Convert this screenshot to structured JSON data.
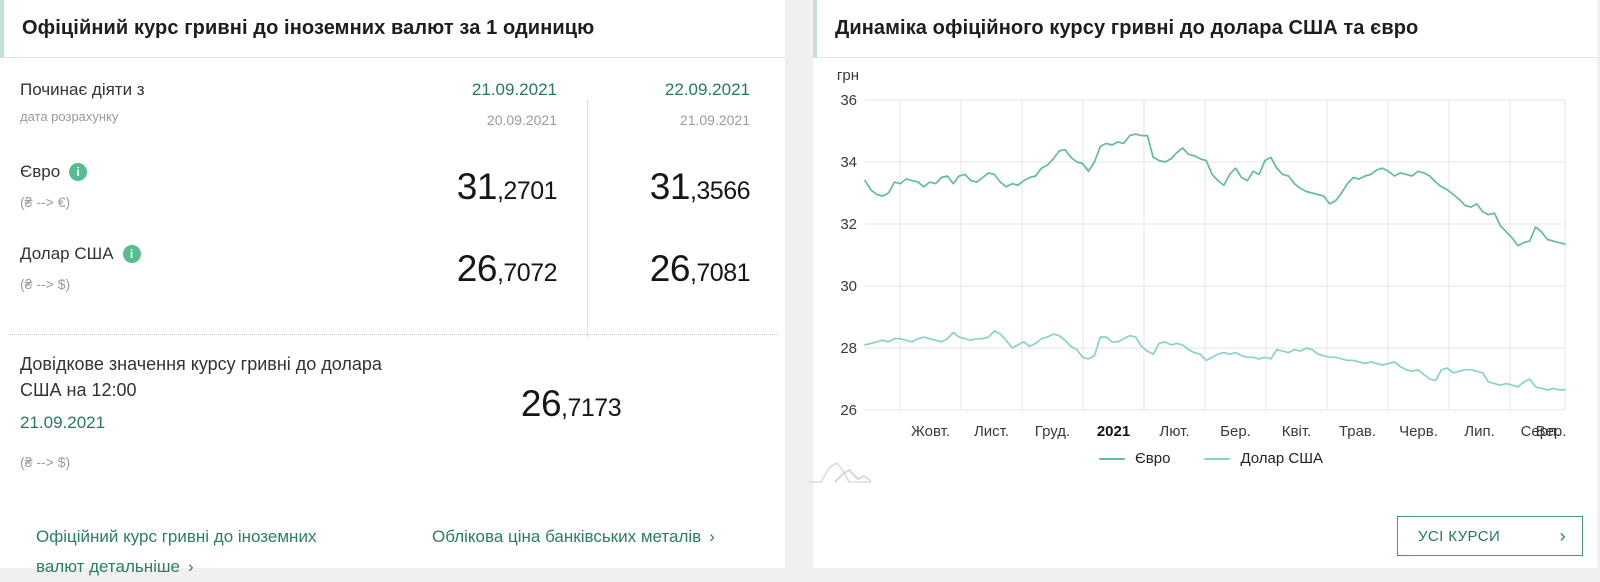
{
  "accent": {
    "green": "#26795d",
    "mint_border": "#c2e3d3"
  },
  "icons": {
    "info": "i",
    "chevron_right": "›"
  },
  "left_panel": {
    "title": "Офіційний курс гривні до іноземних валют за 1 одиницю",
    "effective": {
      "label": "Починає діяти з",
      "sublabel": "дата розрахунку",
      "columns": [
        {
          "date": "21.09.2021",
          "calc_date": "20.09.2021"
        },
        {
          "date": "22.09.2021",
          "calc_date": "21.09.2021"
        }
      ]
    },
    "currencies": [
      {
        "name": "Євро",
        "pair": "(₴ --> €)",
        "values": [
          {
            "int": "31",
            "dec": ",2701"
          },
          {
            "int": "31",
            "dec": ",3566"
          }
        ]
      },
      {
        "name": "Долар США",
        "pair": "(₴ --> $)",
        "values": [
          {
            "int": "26",
            "dec": ",7072"
          },
          {
            "int": "26",
            "dec": ",7081"
          }
        ]
      }
    ],
    "reference": {
      "text_line": "Довідкове значення курсу гривні до долара США на 12:00",
      "date": "21.09.2021",
      "pair": "(₴ --> $)",
      "value": {
        "int": "26",
        "dec": ",7173"
      }
    },
    "links": [
      {
        "label": "Офіційний курс гривні до іноземних валют детальніше"
      },
      {
        "label": "Облікова ціна банківських металів"
      }
    ]
  },
  "right_panel": {
    "title": "Динаміка офіційного курсу гривні до долара США та євро",
    "all_rates_button": "УСІ КУРСИ"
  },
  "chart_data": {
    "type": "line",
    "title": "Динаміка офіційного курсу гривні до долара США та євро",
    "ylabel": "грн",
    "ylim": [
      26,
      36
    ],
    "yticks": [
      36,
      34,
      32,
      30,
      28,
      26
    ],
    "xticklabels": [
      "Жовт.",
      "Лист.",
      "Груд.",
      "2021",
      "Лют.",
      "Бер.",
      "Квіт.",
      "Трав.",
      "Черв.",
      "Лип.",
      "Серп.",
      "Вер."
    ],
    "grid": true,
    "legend_position": "bottom",
    "series": [
      {
        "name": "Євро",
        "color": "#63bd97",
        "values": [
          33.4,
          33.1,
          32.95,
          32.9,
          33.0,
          33.35,
          33.3,
          33.45,
          33.4,
          33.35,
          33.2,
          33.35,
          33.3,
          33.5,
          33.55,
          33.3,
          33.55,
          33.6,
          33.4,
          33.35,
          33.5,
          33.65,
          33.6,
          33.35,
          33.2,
          33.3,
          33.25,
          33.4,
          33.5,
          33.55,
          33.8,
          33.9,
          34.1,
          34.35,
          34.4,
          34.15,
          34.0,
          33.95,
          33.7,
          34.0,
          34.5,
          34.6,
          34.55,
          34.65,
          34.6,
          34.85,
          34.9,
          34.85,
          34.85,
          34.15,
          34.05,
          34.0,
          34.1,
          34.3,
          34.45,
          34.25,
          34.2,
          34.1,
          34.05,
          33.6,
          33.4,
          33.25,
          33.6,
          33.8,
          33.5,
          33.4,
          33.7,
          33.6,
          34.05,
          34.15,
          33.8,
          33.6,
          33.55,
          33.3,
          33.15,
          33.05,
          33.0,
          32.95,
          32.9,
          32.65,
          32.75,
          33.0,
          33.3,
          33.5,
          33.45,
          33.55,
          33.6,
          33.75,
          33.8,
          33.7,
          33.55,
          33.65,
          33.6,
          33.55,
          33.7,
          33.65,
          33.55,
          33.35,
          33.2,
          33.1,
          32.95,
          32.8,
          32.6,
          32.55,
          32.65,
          32.4,
          32.3,
          32.35,
          31.95,
          31.75,
          31.55,
          31.3,
          31.4,
          31.45,
          31.9,
          31.75,
          31.5,
          31.45,
          31.4,
          31.35
        ]
      },
      {
        "name": "Долар США",
        "color": "#87d3c8",
        "values": [
          28.1,
          28.15,
          28.2,
          28.25,
          28.2,
          28.3,
          28.3,
          28.25,
          28.2,
          28.3,
          28.35,
          28.3,
          28.25,
          28.2,
          28.3,
          28.5,
          28.35,
          28.3,
          28.25,
          28.3,
          28.3,
          28.35,
          28.55,
          28.45,
          28.25,
          28.0,
          28.1,
          28.2,
          28.05,
          28.15,
          28.3,
          28.35,
          28.45,
          28.4,
          28.25,
          28.05,
          27.95,
          27.7,
          27.65,
          27.75,
          28.35,
          28.35,
          28.2,
          28.2,
          28.3,
          28.4,
          28.35,
          28.05,
          27.9,
          27.8,
          28.15,
          28.2,
          28.1,
          28.15,
          28.1,
          27.95,
          27.85,
          27.8,
          27.6,
          27.7,
          27.8,
          27.85,
          27.8,
          27.85,
          27.75,
          27.7,
          27.7,
          27.65,
          27.7,
          27.65,
          27.95,
          27.9,
          27.85,
          27.95,
          27.9,
          28.0,
          27.95,
          27.8,
          27.75,
          27.7,
          27.7,
          27.65,
          27.6,
          27.6,
          27.55,
          27.5,
          27.55,
          27.5,
          27.45,
          27.5,
          27.55,
          27.4,
          27.3,
          27.25,
          27.3,
          27.15,
          27.0,
          26.95,
          27.3,
          27.35,
          27.2,
          27.25,
          27.3,
          27.3,
          27.25,
          27.2,
          26.9,
          26.85,
          26.8,
          26.85,
          26.8,
          26.75,
          26.9,
          27.0,
          26.75,
          26.7,
          26.65,
          26.7,
          26.65,
          26.65
        ]
      }
    ]
  }
}
